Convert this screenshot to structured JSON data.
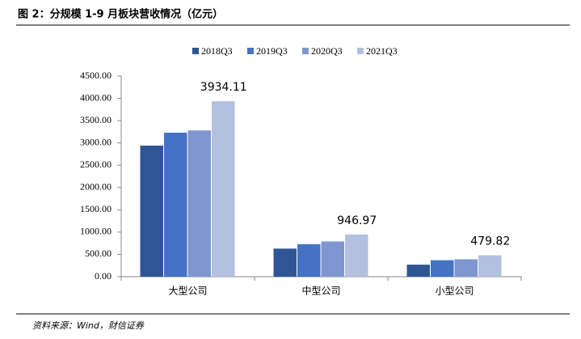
{
  "chart_data": {
    "type": "bar",
    "title": "图 2：分规模 1-9 月板块营收情况（亿元）",
    "categories": [
      "大型公司",
      "中型公司",
      "小型公司"
    ],
    "series": [
      {
        "name": "2018Q3",
        "color": "#2f5597",
        "values": [
          2940,
          630,
          270
        ]
      },
      {
        "name": "2019Q3",
        "color": "#4472c4",
        "values": [
          3230,
          730,
          370
        ]
      },
      {
        "name": "2020Q3",
        "color": "#7f96d0",
        "values": [
          3280,
          790,
          390
        ]
      },
      {
        "name": "2021Q3",
        "color": "#b4c0e0",
        "values": [
          3934.11,
          946.97,
          479.82
        ],
        "data_labels": true
      }
    ],
    "ylim": [
      0,
      4500
    ],
    "yticks": [
      {
        "value": 0,
        "label": "0.00"
      },
      {
        "value": 500,
        "label": "500.00"
      },
      {
        "value": 1000,
        "label": "1000.00"
      },
      {
        "value": 1500,
        "label": "1500.00"
      },
      {
        "value": 2000,
        "label": "2000.00"
      },
      {
        "value": 2500,
        "label": "2500.00"
      },
      {
        "value": 3000,
        "label": "3000.00"
      },
      {
        "value": 3500,
        "label": "3500.00"
      },
      {
        "value": 4000,
        "label": "4000.00"
      },
      {
        "value": 4500,
        "label": "4500.00"
      }
    ],
    "grid": false,
    "legend": "top",
    "source": "资料来源：Wind，财信证券"
  }
}
